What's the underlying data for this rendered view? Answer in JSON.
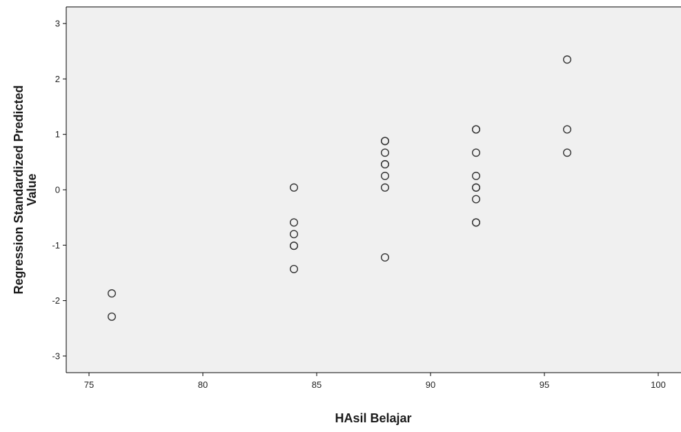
{
  "chart_data": {
    "type": "scatter",
    "xlabel": "HAsil Belajar",
    "ylabel": [
      "Regression Standardized Predicted",
      "Value"
    ],
    "xlim": [
      74,
      101
    ],
    "ylim": [
      -3.3,
      3.3
    ],
    "xticks": [
      75,
      80,
      85,
      90,
      95,
      100
    ],
    "yticks": [
      -3,
      -2,
      -1,
      0,
      1,
      2,
      3
    ],
    "grid": false,
    "legend": "none",
    "colors": {
      "plot_background": "#f0f0f0",
      "marker_stroke": "#333333",
      "axis": "#000000"
    },
    "points": [
      {
        "x": 76,
        "y": -1.87
      },
      {
        "x": 76,
        "y": -2.29
      },
      {
        "x": 84,
        "y": 0.04
      },
      {
        "x": 84,
        "y": -0.59
      },
      {
        "x": 84,
        "y": -0.8
      },
      {
        "x": 84,
        "y": -1.01
      },
      {
        "x": 84,
        "y": -1.01
      },
      {
        "x": 84,
        "y": -1.43
      },
      {
        "x": 88,
        "y": 0.88
      },
      {
        "x": 88,
        "y": 0.88
      },
      {
        "x": 88,
        "y": 0.67
      },
      {
        "x": 88,
        "y": 0.46
      },
      {
        "x": 88,
        "y": 0.46
      },
      {
        "x": 88,
        "y": 0.25
      },
      {
        "x": 88,
        "y": 0.04
      },
      {
        "x": 88,
        "y": -1.22
      },
      {
        "x": 92,
        "y": 1.09
      },
      {
        "x": 92,
        "y": 1.09
      },
      {
        "x": 92,
        "y": 0.67
      },
      {
        "x": 92,
        "y": 0.25
      },
      {
        "x": 92,
        "y": 0.04
      },
      {
        "x": 92,
        "y": 0.04
      },
      {
        "x": 92,
        "y": -0.17
      },
      {
        "x": 92,
        "y": -0.59
      },
      {
        "x": 92,
        "y": -0.59
      },
      {
        "x": 96,
        "y": 2.35
      },
      {
        "x": 96,
        "y": 1.09
      },
      {
        "x": 96,
        "y": 0.67
      }
    ]
  }
}
